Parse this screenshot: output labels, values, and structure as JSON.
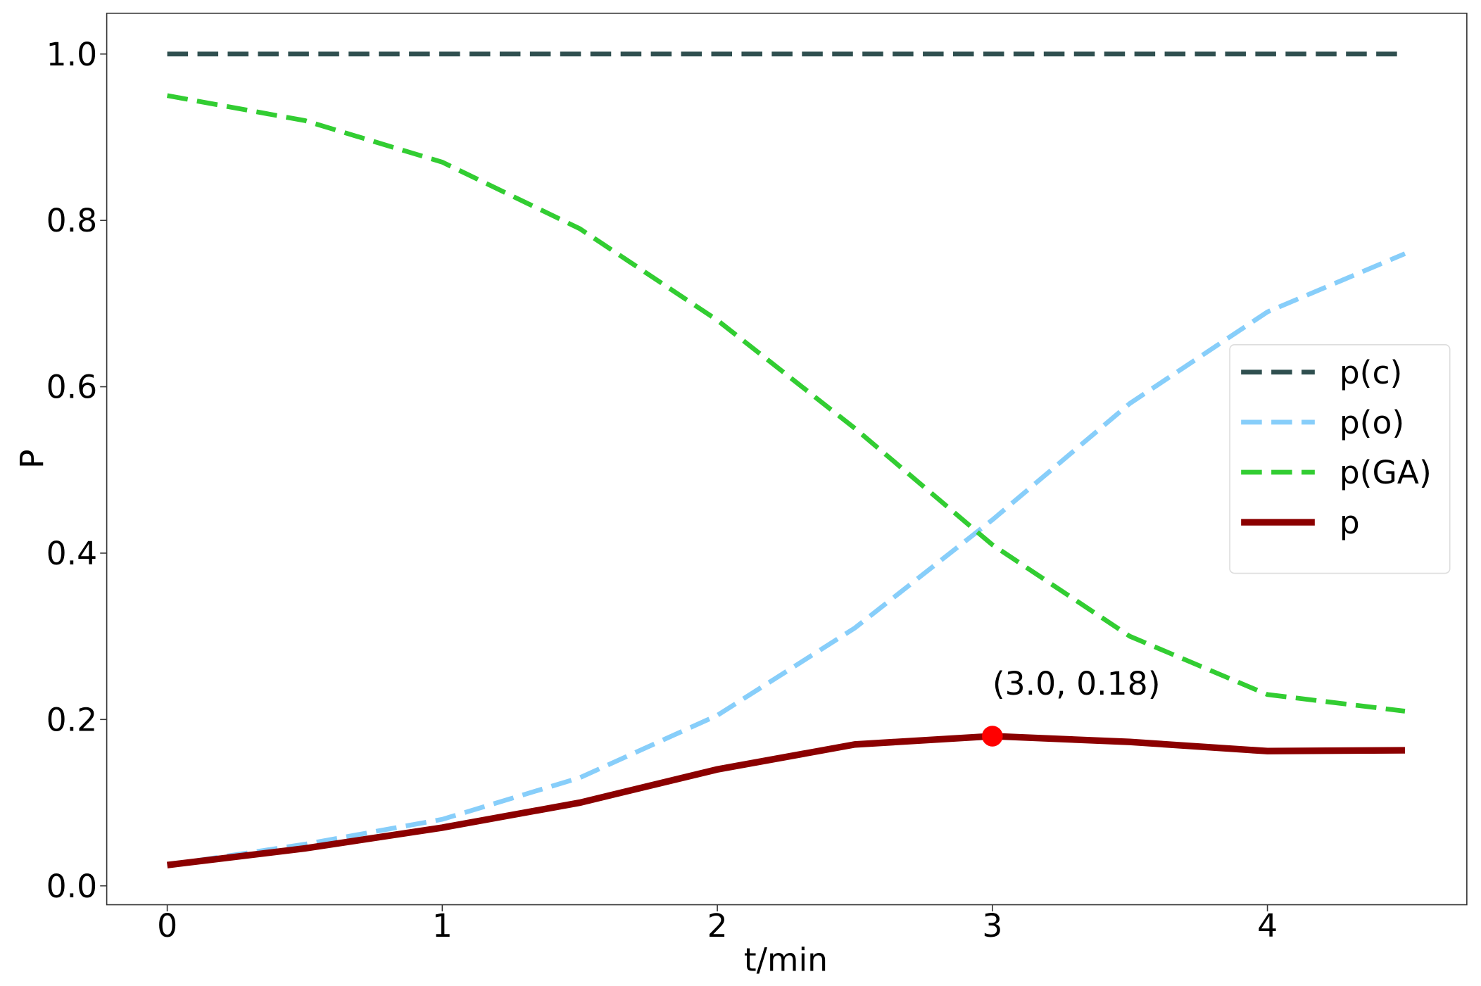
{
  "chart_data": {
    "type": "line",
    "x_label": "t/min",
    "y_label": "P",
    "x": [
      0,
      0.5,
      1,
      1.5,
      2,
      2.5,
      3,
      3.5,
      4,
      4.5
    ],
    "series": [
      {
        "name": "p(c)",
        "color": "#2f4f4f",
        "dashed": true,
        "values": [
          1,
          1,
          1,
          1,
          1,
          1,
          1,
          1,
          1,
          1
        ]
      },
      {
        "name": "p(o)",
        "color": "#87cefa",
        "dashed": true,
        "values": [
          0.025,
          0.05,
          0.08,
          0.13,
          0.205,
          0.31,
          0.44,
          0.58,
          0.69,
          0.76
        ]
      },
      {
        "name": "p(GA)",
        "color": "#32cd32",
        "dashed": true,
        "values": [
          0.95,
          0.92,
          0.87,
          0.79,
          0.68,
          0.55,
          0.41,
          0.3,
          0.23,
          0.21
        ]
      },
      {
        "name": "p",
        "color": "#8b0000",
        "dashed": false,
        "values": [
          0.025,
          0.045,
          0.07,
          0.1,
          0.14,
          0.17,
          0.18,
          0.173,
          0.162,
          0.163
        ]
      }
    ],
    "annotations": [
      {
        "text": "(3.0, 0.18)",
        "x": 3.0,
        "y": 0.18,
        "color": "#ff0000"
      }
    ],
    "xlim": [
      -0.22,
      4.725
    ],
    "ylim": [
      -0.0227,
      1.049
    ],
    "xticks": [
      0,
      1,
      2,
      3,
      4
    ],
    "yticks": [
      {
        "value": 0,
        "label": "0.0"
      },
      {
        "value": 0.2,
        "label": "0.2"
      },
      {
        "value": 0.4,
        "label": "0.4"
      },
      {
        "value": 0.6,
        "label": "0.6"
      },
      {
        "value": 0.8,
        "label": "0.8"
      },
      {
        "value": 1,
        "label": "1.0"
      }
    ],
    "legend": "center right"
  }
}
